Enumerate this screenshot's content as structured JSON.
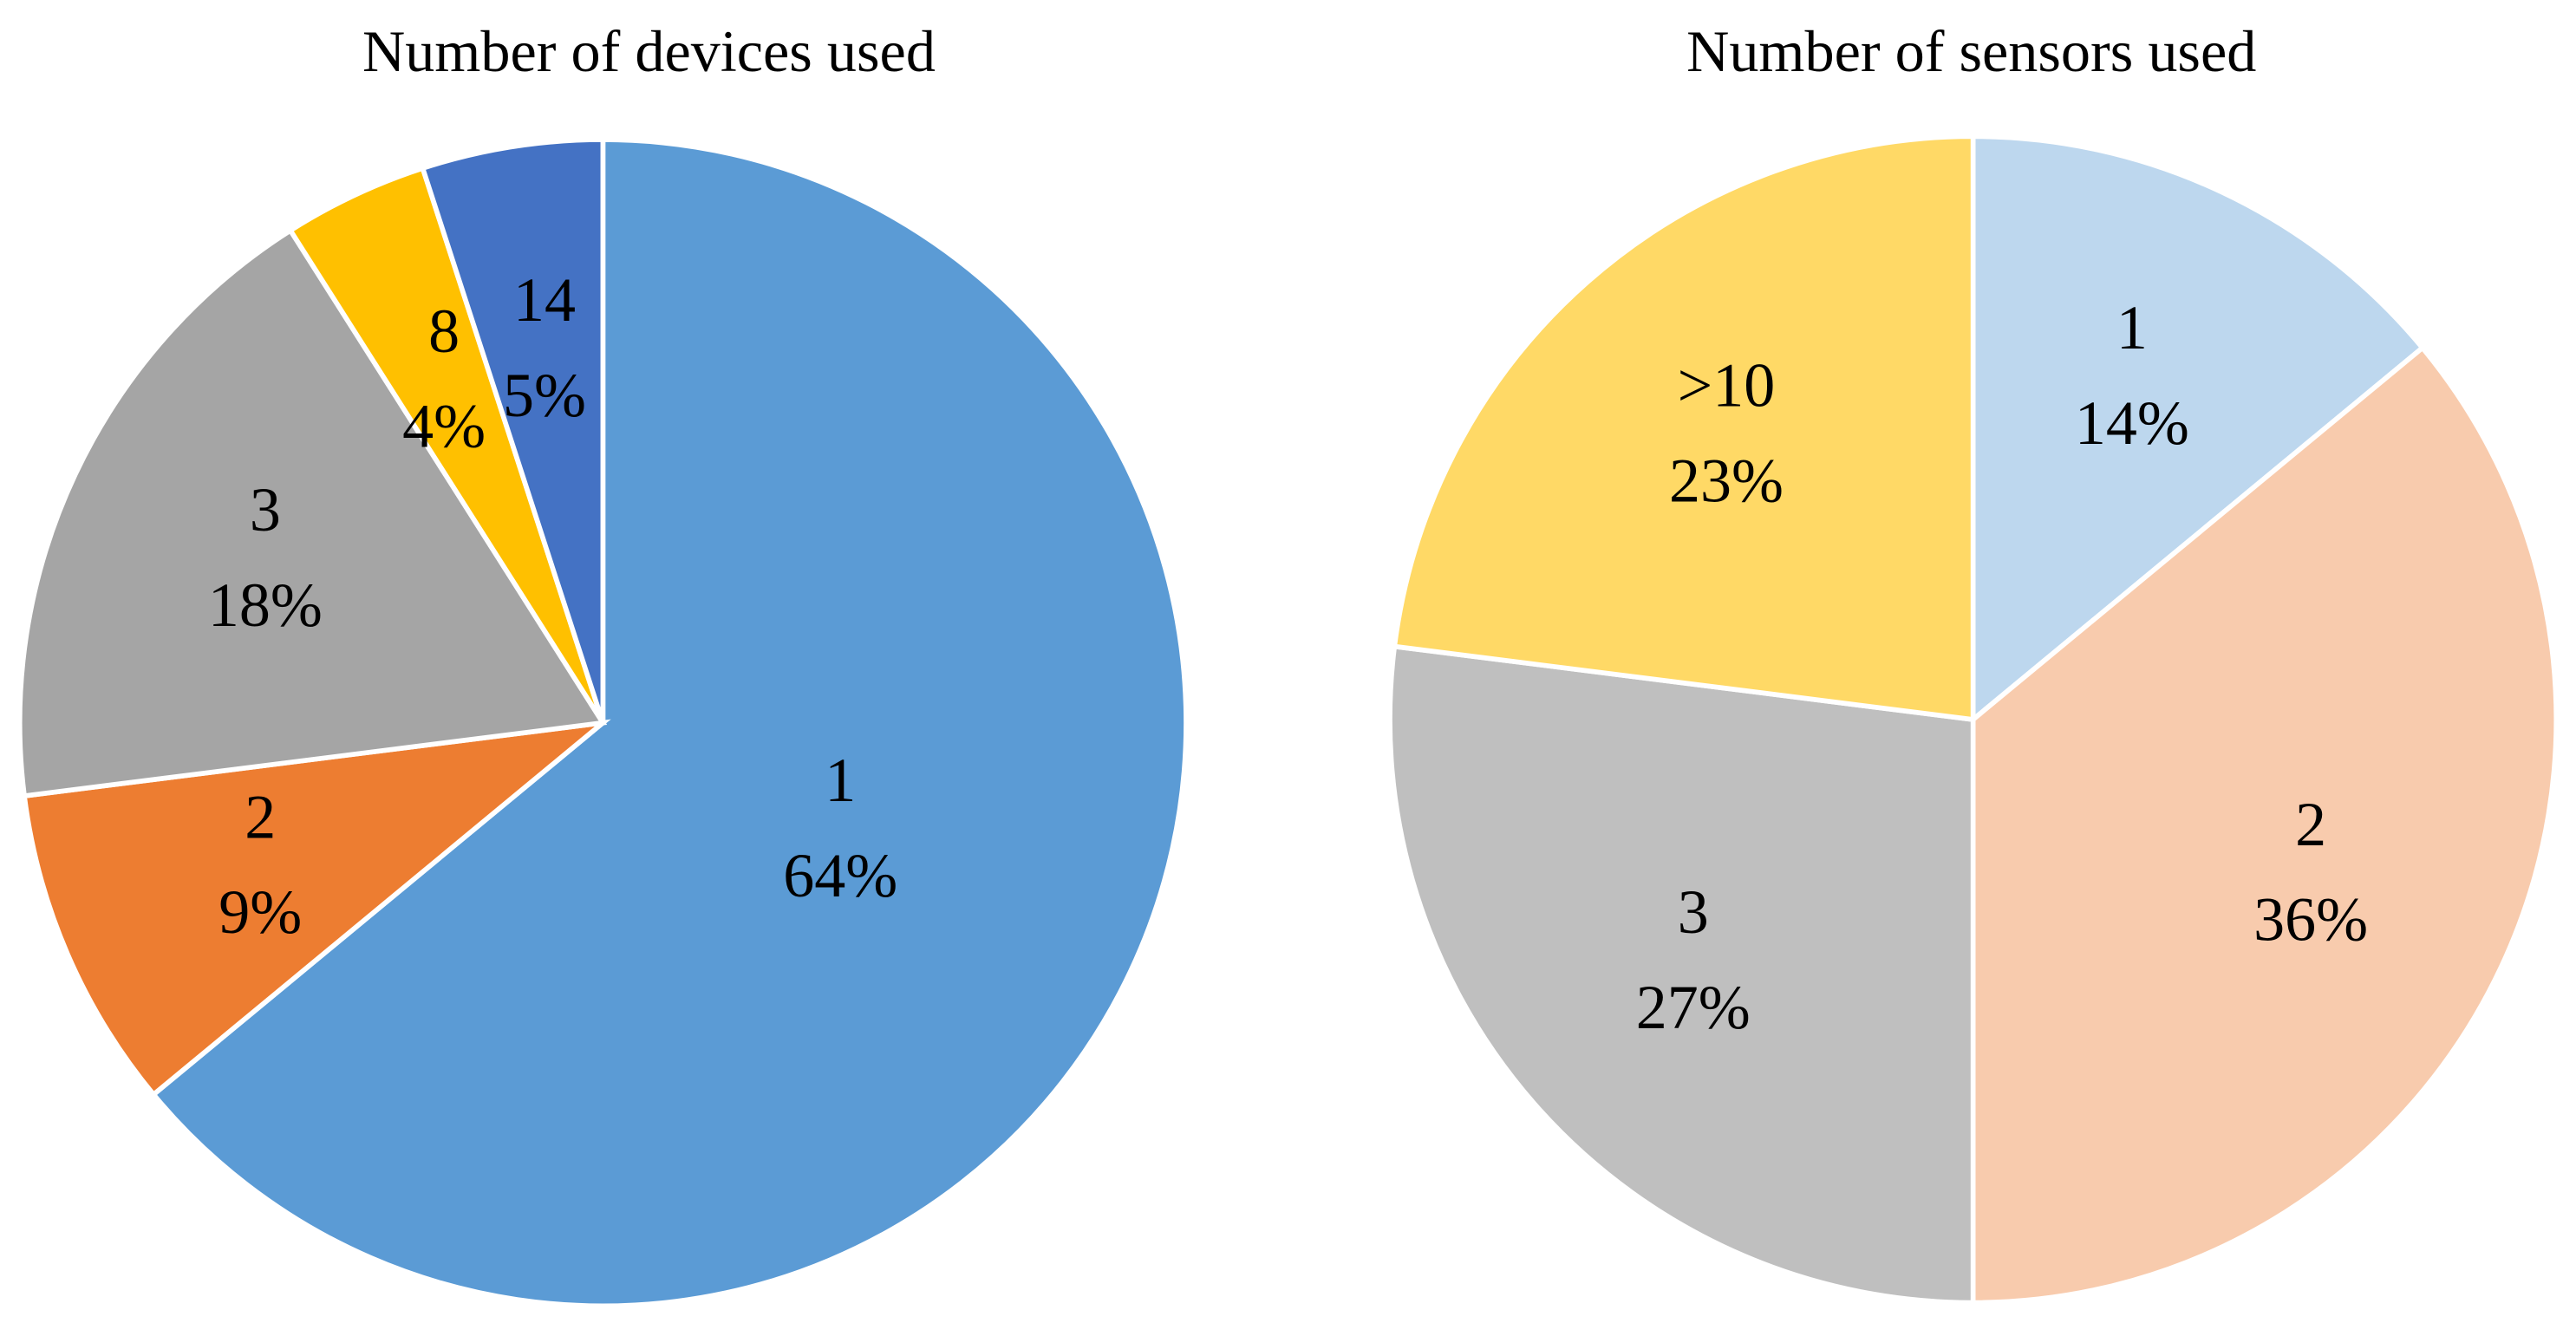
{
  "chart_data": [
    {
      "type": "pie",
      "title": "Number of devices used",
      "categories": [
        "1",
        "2",
        "3",
        "8",
        "14"
      ],
      "values": [
        64,
        9,
        18,
        4,
        5
      ],
      "value_labels": [
        "64%",
        "9%",
        "18%",
        "4%",
        "5%"
      ],
      "colors": [
        "#5b9bd5",
        "#ed7d31",
        "#a5a5a5",
        "#ffc000",
        "#4472c4"
      ]
    },
    {
      "type": "pie",
      "title": "Number of sensors used",
      "categories": [
        "1",
        "2",
        "3",
        ">10"
      ],
      "values": [
        14,
        36,
        27,
        23
      ],
      "value_labels": [
        "14%",
        "36%",
        "27%",
        "23%"
      ],
      "colors": [
        "#bdd7ee",
        "#f8cbad",
        "#bfbfbf",
        "#ffd966"
      ]
    }
  ]
}
